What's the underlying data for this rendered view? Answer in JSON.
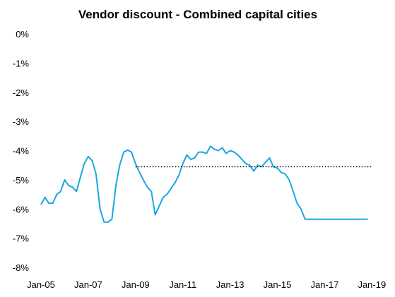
{
  "chart_data": {
    "type": "line",
    "title": "Vendor discount - Combined capital cities",
    "xlabel": "",
    "ylabel": "",
    "x_range": [
      "Jan-05",
      "Jan-19"
    ],
    "ylim": [
      -8,
      0
    ],
    "y_ticks": [
      "0%",
      "-1%",
      "-2%",
      "-3%",
      "-4%",
      "-5%",
      "-6%",
      "-7%",
      "-8%"
    ],
    "y_tick_values": [
      0,
      -1,
      -2,
      -3,
      -4,
      -5,
      -6,
      -7,
      -8
    ],
    "x_ticks": [
      "Jan-05",
      "Jan-07",
      "Jan-09",
      "Jan-11",
      "Jan-13",
      "Jan-15",
      "Jan-17",
      "Jan-19"
    ],
    "x_tick_values": [
      2005,
      2007,
      2009,
      2011,
      2013,
      2015,
      2017,
      2019
    ],
    "grid": false,
    "colors": {
      "series": "#1aa7e1",
      "reference": "#000000"
    },
    "series": [
      {
        "style": "solid",
        "x": [
          2005.0,
          2005.17,
          2005.33,
          2005.5,
          2005.67,
          2005.83,
          2006.0,
          2006.17,
          2006.33,
          2006.5,
          2006.67,
          2006.83,
          2007.0,
          2007.17,
          2007.33,
          2007.5,
          2007.67,
          2007.83,
          2008.0,
          2008.17,
          2008.33,
          2008.5,
          2008.67,
          2008.83,
          2009.0,
          2009.17,
          2009.33,
          2009.5,
          2009.67,
          2009.83,
          2010.0,
          2010.17,
          2010.33,
          2010.5,
          2010.67,
          2010.83,
          2011.0,
          2011.17,
          2011.33,
          2011.5,
          2011.67,
          2011.83,
          2012.0,
          2012.17,
          2012.33,
          2012.5,
          2012.67,
          2012.83,
          2013.0,
          2013.17,
          2013.33,
          2013.5,
          2013.67,
          2013.83,
          2014.0,
          2014.17,
          2014.33,
          2014.5,
          2014.67,
          2014.83,
          2015.0,
          2015.17,
          2015.33,
          2015.5,
          2015.67,
          2015.83,
          2016.0,
          2016.17,
          2016.33,
          2016.5,
          2016.67,
          2016.83,
          2017.0,
          2017.17,
          2017.33,
          2017.5,
          2017.67,
          2017.83,
          2018.0,
          2018.17,
          2018.33,
          2018.5,
          2018.67,
          2018.83
        ],
        "y": [
          -5.85,
          -5.6,
          -5.8,
          -5.8,
          -5.5,
          -5.4,
          -5.0,
          -5.2,
          -5.25,
          -5.4,
          -4.9,
          -4.45,
          -4.2,
          -4.35,
          -4.8,
          -6.0,
          -6.45,
          -6.45,
          -6.35,
          -5.2,
          -4.5,
          -4.05,
          -3.98,
          -4.05,
          -4.45,
          -4.75,
          -5.0,
          -5.25,
          -5.4,
          -6.2,
          -5.9,
          -5.6,
          -5.5,
          -5.3,
          -5.1,
          -4.85,
          -4.45,
          -4.15,
          -4.3,
          -4.25,
          -4.05,
          -4.05,
          -4.1,
          -3.85,
          -3.95,
          -4.0,
          -3.9,
          -4.1,
          -4.0,
          -4.05,
          -4.15,
          -4.3,
          -4.45,
          -4.5,
          -4.7,
          -4.5,
          -4.55,
          -4.4,
          -4.25,
          -4.55,
          -4.6,
          -4.75,
          -4.8,
          -5.0,
          -5.4,
          -5.8,
          -6.0,
          -6.35,
          -6.35,
          -6.35,
          -6.35,
          -6.35,
          -6.35,
          -6.35,
          -6.35,
          -6.35,
          -6.35,
          -6.35,
          -6.35,
          -6.35,
          -6.35,
          -6.35,
          -6.35,
          -6.35
        ]
      },
      {
        "style": "dotted",
        "x": [
          2009.0,
          2019.0
        ],
        "y": [
          -4.55,
          -4.55
        ]
      }
    ]
  }
}
